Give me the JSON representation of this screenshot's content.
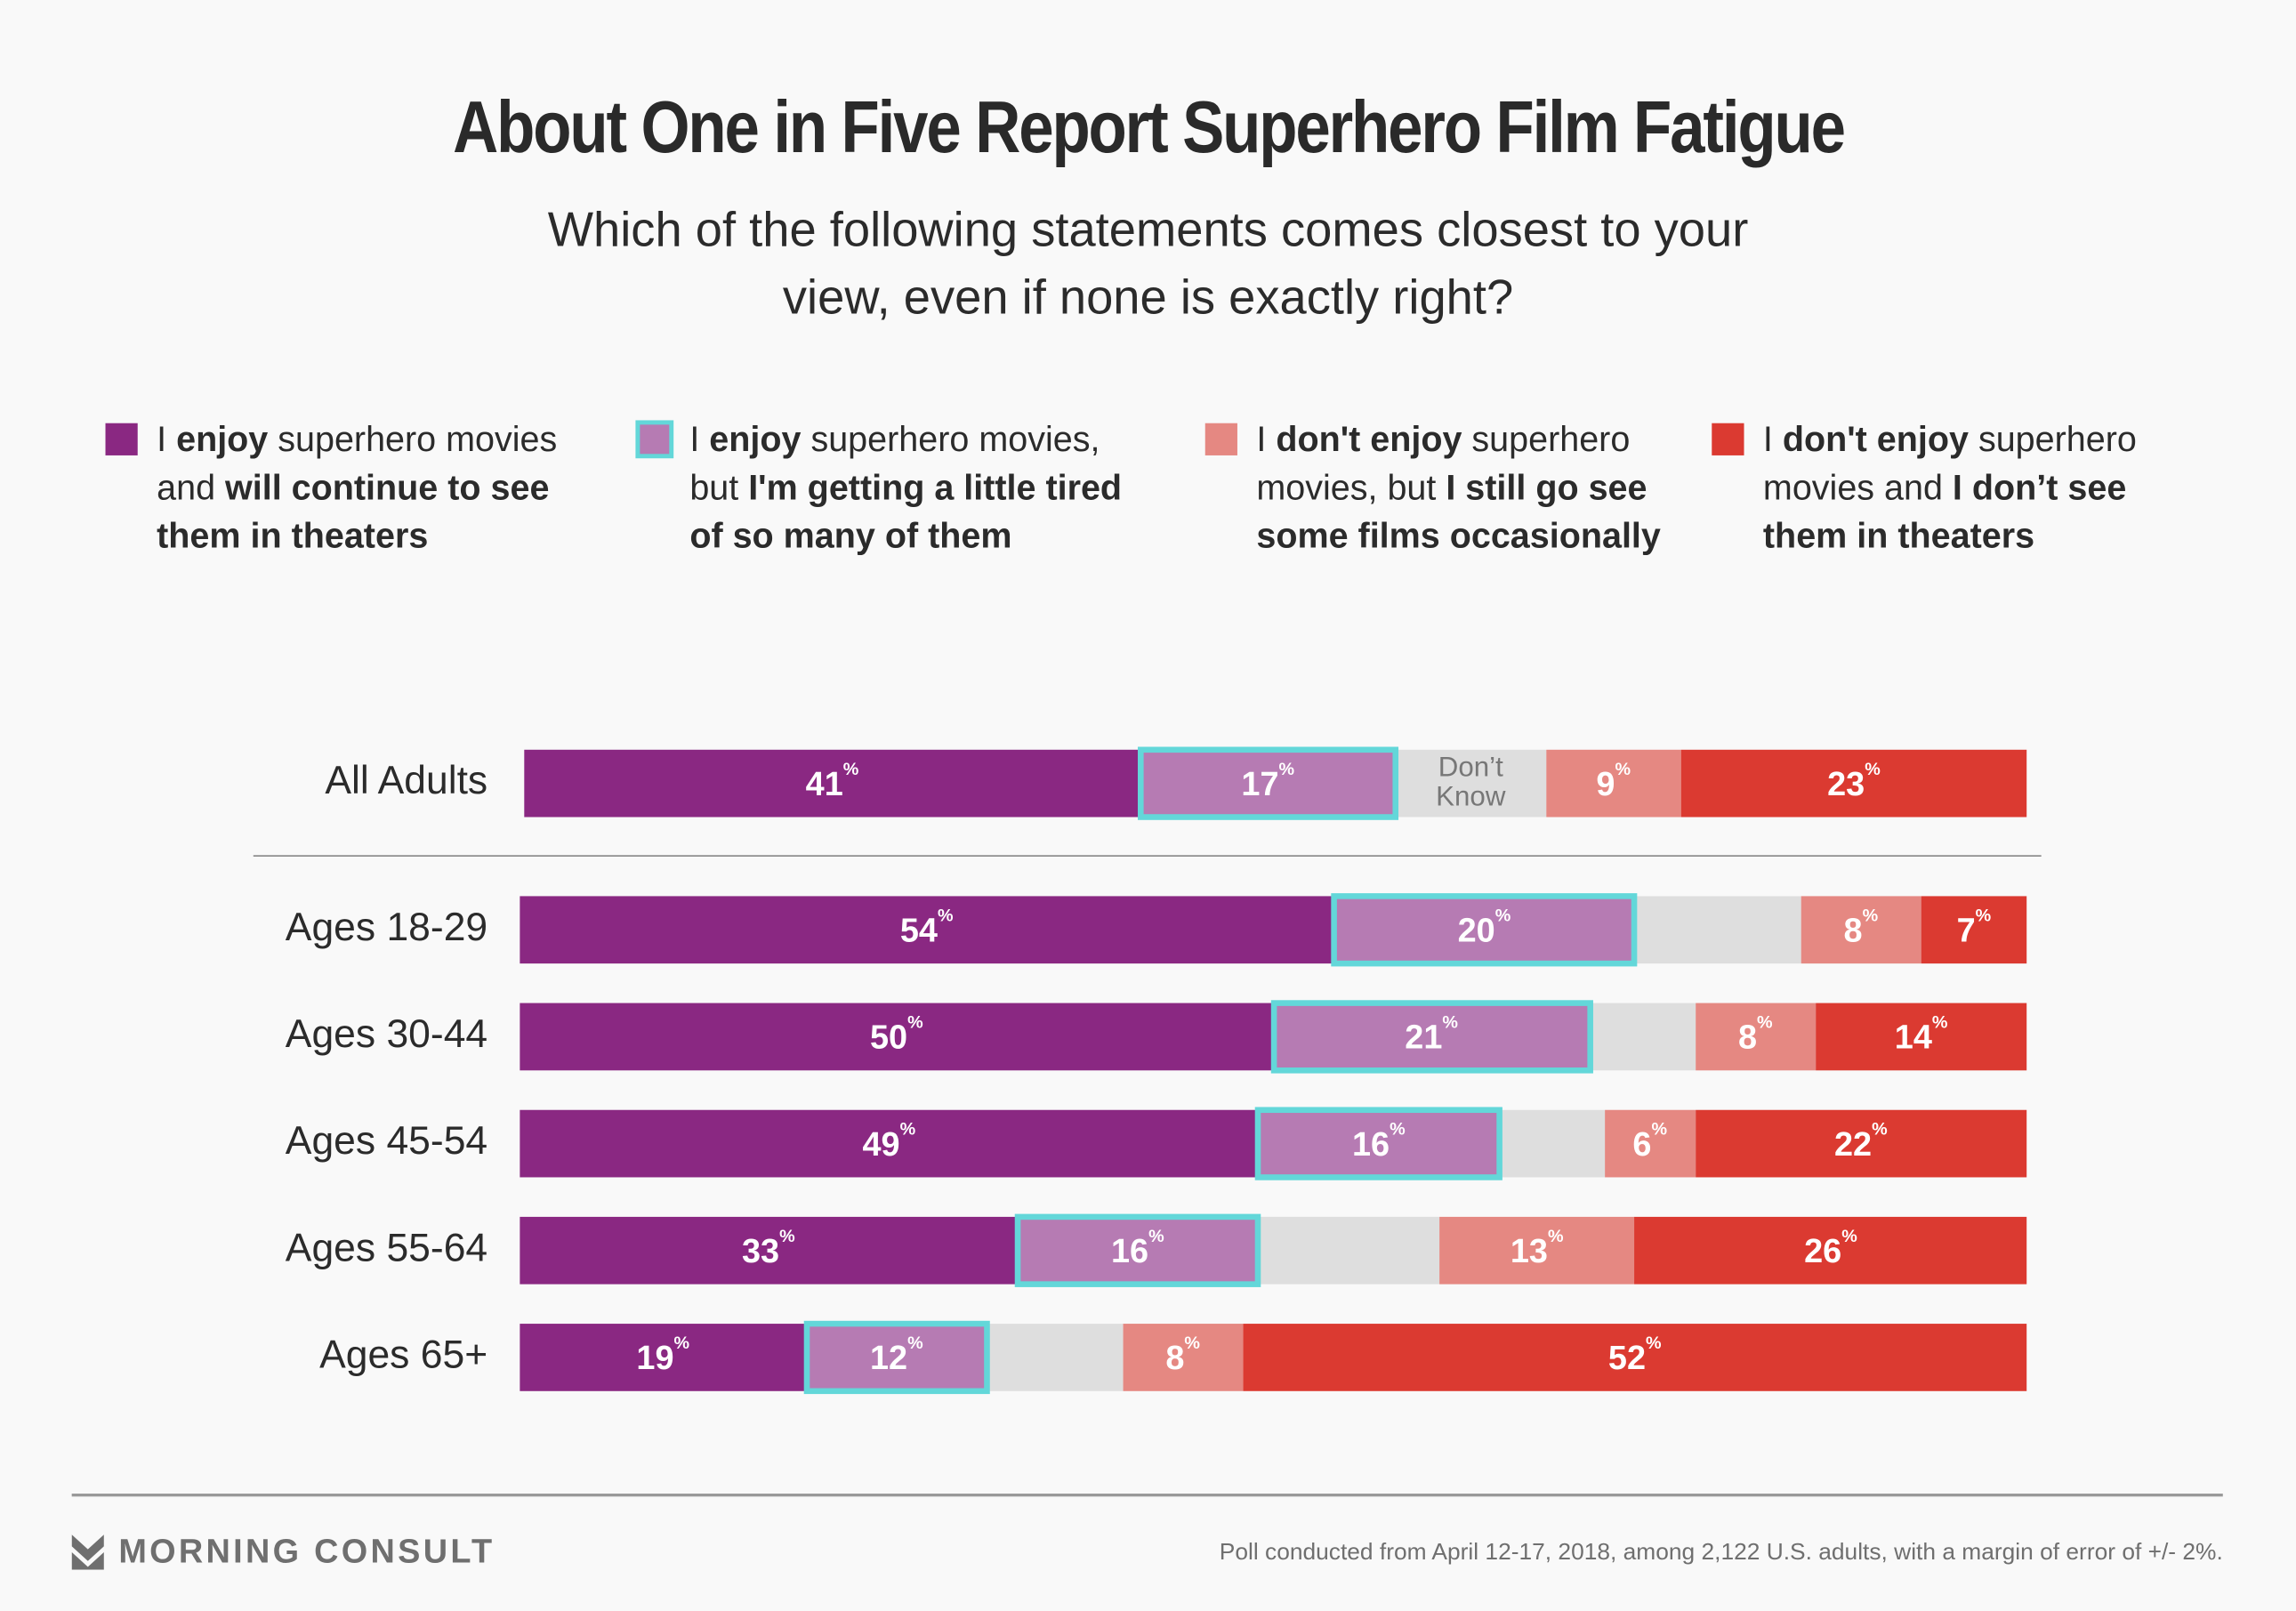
{
  "chart_data": {
    "type": "bar",
    "stacked": true,
    "orientation": "horizontal",
    "title": "About One in Five Report Superhero Film Fatigue",
    "subtitle": [
      "Which of the following statements comes closest to your",
      "view, even if none is exactly right?"
    ],
    "categories": [
      "All Adults",
      "Ages 18-29",
      "Ages 30-44",
      "Ages 45-54",
      "Ages 55-64",
      "Ages 65+"
    ],
    "series": [
      {
        "name": "I enjoy superhero movies and will continue to see them in theaters",
        "color": "#8a2882",
        "values": [
          41,
          54,
          50,
          49,
          33,
          19
        ]
      },
      {
        "name": "I enjoy superhero movies, but I'm getting a little tired of so many of them",
        "color": "#b67bb3",
        "highlight": "#63d7d9",
        "values": [
          17,
          20,
          21,
          16,
          16,
          12
        ]
      },
      {
        "name": "Don't Know",
        "color": "#dedede",
        "values": [
          10,
          11,
          7,
          7,
          12,
          9
        ]
      },
      {
        "name": "I don't enjoy superhero movies, but I still go see some films occasionally",
        "color": "#e58882",
        "values": [
          9,
          8,
          8,
          6,
          13,
          8
        ]
      },
      {
        "name": "I don't enjoy superhero movies and I don't see them in theaters",
        "color": "#db3a31",
        "values": [
          23,
          7,
          14,
          22,
          26,
          52
        ]
      }
    ],
    "dont_know_label": [
      "Don’t",
      "Know"
    ],
    "percent_sign": "%",
    "xlim": [
      0,
      100
    ],
    "legend_position": "top"
  },
  "legend": [
    {
      "color": "#8a2882",
      "lines": [
        [
          [
            "",
            "I "
          ],
          [
            "b",
            "enjoy"
          ],
          [
            "",
            " superhero movies"
          ]
        ],
        [
          [
            "",
            "and "
          ],
          [
            "b",
            "will continue to see"
          ]
        ],
        [
          [
            "b",
            "them in theaters"
          ]
        ]
      ]
    },
    {
      "color": "#b67bb3",
      "border": "#63d7d9",
      "lines": [
        [
          [
            "",
            "I "
          ],
          [
            "b",
            "enjoy"
          ],
          [
            "",
            " superhero movies,"
          ]
        ],
        [
          [
            "",
            "but "
          ],
          [
            "b",
            "I'm getting a little tired"
          ]
        ],
        [
          [
            "b",
            "of so many of them"
          ]
        ]
      ]
    },
    {
      "color": "#e58882",
      "lines": [
        [
          [
            "",
            "I "
          ],
          [
            "b",
            "don't enjoy"
          ],
          [
            "",
            " superhero"
          ]
        ],
        [
          [
            "",
            "movies, but "
          ],
          [
            "b",
            "I still go see"
          ]
        ],
        [
          [
            "b",
            "some films occasionally"
          ]
        ]
      ]
    },
    {
      "color": "#db3a31",
      "lines": [
        [
          [
            "",
            "I "
          ],
          [
            "b",
            "don't enjoy"
          ],
          [
            "",
            " superhero"
          ]
        ],
        [
          [
            "",
            "movies and "
          ],
          [
            "b",
            "I don’t see"
          ]
        ],
        [
          [
            "b",
            "them in theaters"
          ]
        ]
      ]
    }
  ],
  "footer": {
    "brand": "MORNING CONSULT",
    "source": "Poll conducted from April 12-17, 2018, among 2,122 U.S. adults, with a margin of error of +/- 2%."
  }
}
